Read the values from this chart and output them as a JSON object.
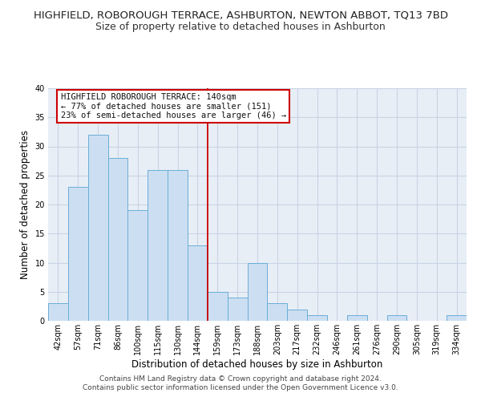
{
  "title": "HIGHFIELD, ROBOROUGH TERRACE, ASHBURTON, NEWTON ABBOT, TQ13 7BD",
  "subtitle": "Size of property relative to detached houses in Ashburton",
  "xlabel": "Distribution of detached houses by size in Ashburton",
  "ylabel": "Number of detached properties",
  "bin_labels": [
    "42sqm",
    "57sqm",
    "71sqm",
    "86sqm",
    "100sqm",
    "115sqm",
    "130sqm",
    "144sqm",
    "159sqm",
    "173sqm",
    "188sqm",
    "203sqm",
    "217sqm",
    "232sqm",
    "246sqm",
    "261sqm",
    "276sqm",
    "290sqm",
    "305sqm",
    "319sqm",
    "334sqm"
  ],
  "bar_values": [
    3,
    23,
    32,
    28,
    19,
    26,
    26,
    13,
    5,
    4,
    10,
    3,
    2,
    1,
    0,
    1,
    0,
    1,
    0,
    0,
    1
  ],
  "bar_color": "#ccdff2",
  "bar_edge_color": "#6aaed6",
  "grid_color": "#c8d4e4",
  "background_color": "#e8eef6",
  "vline_color": "#cc0000",
  "vline_x_index": 7,
  "annotation_title": "HIGHFIELD ROBOROUGH TERRACE: 140sqm",
  "annotation_line1": "← 77% of detached houses are smaller (151)",
  "annotation_line2": "23% of semi-detached houses are larger (46) →",
  "annotation_box_color": "#ffffff",
  "annotation_box_edge": "#cc0000",
  "ylim": [
    0,
    40
  ],
  "yticks": [
    0,
    5,
    10,
    15,
    20,
    25,
    30,
    35,
    40
  ],
  "title_fontsize": 9.5,
  "subtitle_fontsize": 9,
  "axis_label_fontsize": 8.5,
  "tick_fontsize": 7,
  "annotation_fontsize": 7.5,
  "footer_fontsize": 6.5,
  "footer_line1": "Contains HM Land Registry data © Crown copyright and database right 2024.",
  "footer_line2": "Contains public sector information licensed under the Open Government Licence v3.0."
}
